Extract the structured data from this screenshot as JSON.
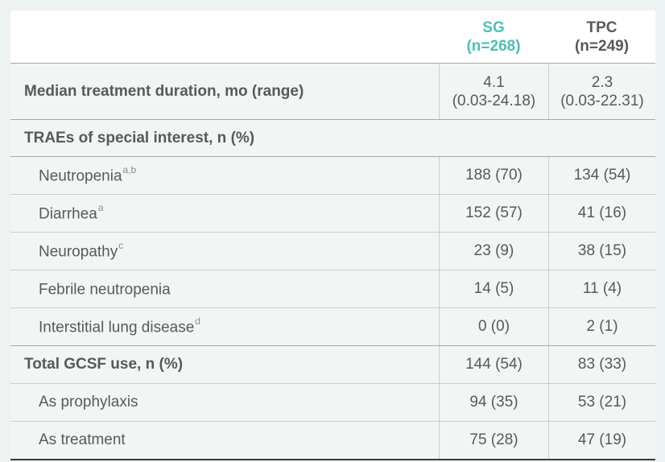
{
  "table": {
    "columns": [
      {
        "name": "SG",
        "line1": "SG",
        "line2": "(n=268)"
      },
      {
        "name": "TPC",
        "line1": "TPC",
        "line2": "(n=249)"
      }
    ],
    "duration_row": {
      "label": "Median treatment duration, mo (range)",
      "sg_line1": "4.1",
      "sg_line2": "(0.03-24.18)",
      "tpc_line1": "2.3",
      "tpc_line2": "(0.03-22.31)"
    },
    "section_header": {
      "label": "TRAEs of special interest, n (%)"
    },
    "rows": [
      {
        "label": "Neutropenia",
        "sup": "a,b",
        "sg": "188 (70)",
        "tpc": "134 (54)"
      },
      {
        "label": "Diarrhea",
        "sup": "a",
        "sg": "152 (57)",
        "tpc": "41 (16)"
      },
      {
        "label": "Neuropathy",
        "sup": "c",
        "sg": "23 (9)",
        "tpc": "38 (15)"
      },
      {
        "label": "Febrile neutropenia",
        "sup": "",
        "sg": "14 (5)",
        "tpc": "11 (4)"
      },
      {
        "label": "Interstitial lung disease",
        "sup": "d",
        "sg": "0 (0)",
        "tpc": "2 (1)"
      }
    ],
    "gcsf": {
      "total": {
        "label": "Total GCSF use, n (%)",
        "sg": "144 (54)",
        "tpc": "83 (33)"
      },
      "prophylaxis": {
        "label": "As prophylaxis",
        "sg": "94 (35)",
        "tpc": "53 (21)"
      },
      "treatment": {
        "label": "As treatment",
        "sg": "75 (28)",
        "tpc": "47 (19)"
      }
    },
    "colors": {
      "accent_teal": "#4dbfb2",
      "text_gray": "#58595b"
    }
  }
}
